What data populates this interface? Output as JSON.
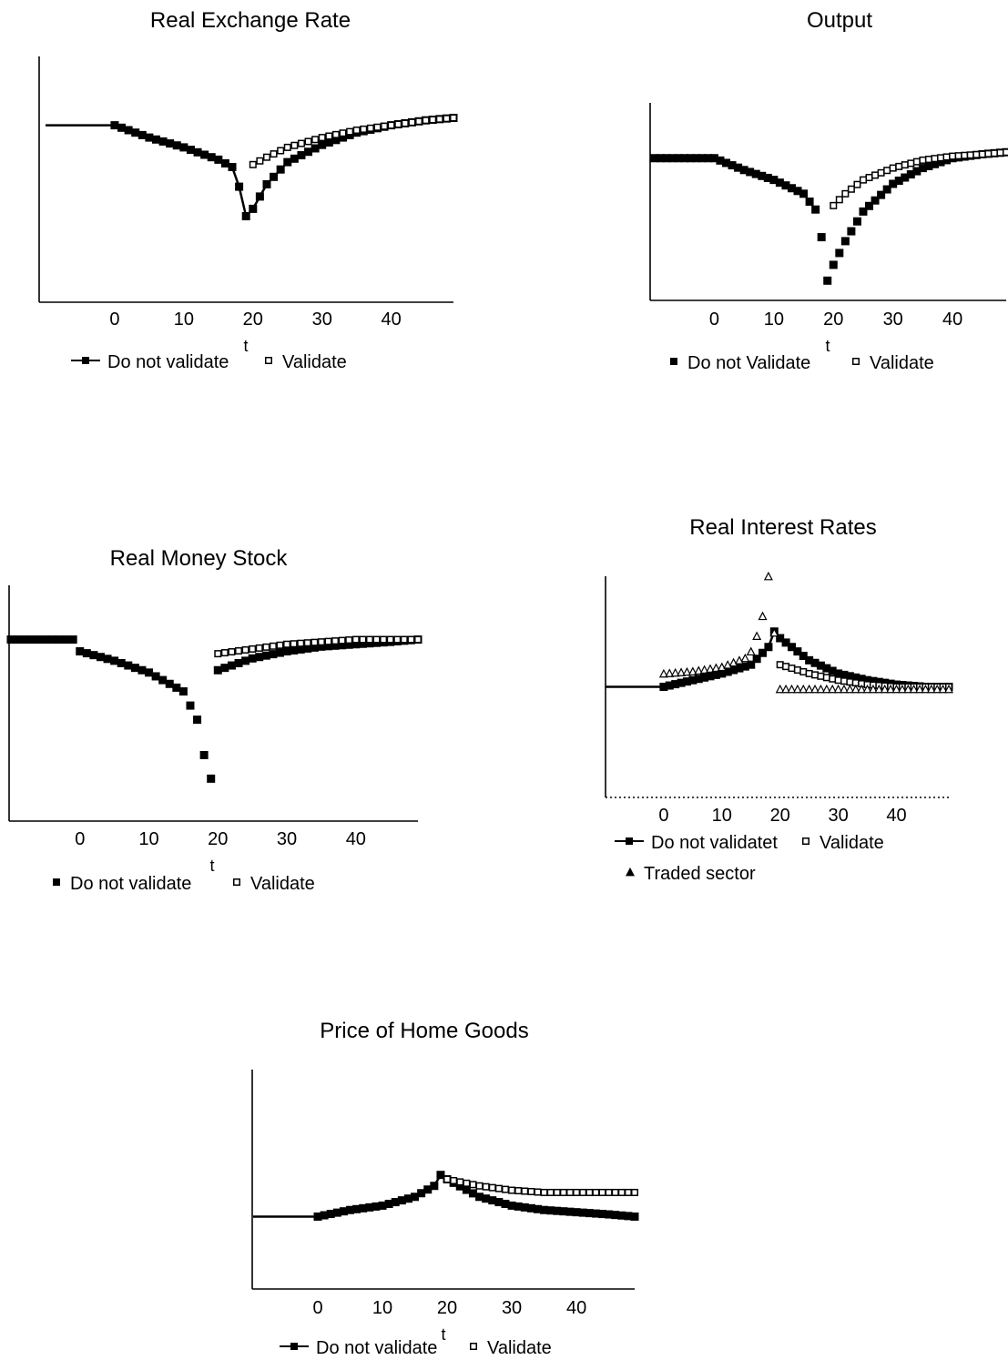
{
  "chart_data": [
    {
      "type": "scatter",
      "title": "Real Exchange Rate",
      "xlabel": "t",
      "ylabel": "",
      "xticks": [
        "0",
        "10",
        "20",
        "30",
        "40"
      ],
      "xlim": [
        -10,
        49
      ],
      "ylim": [
        0,
        100
      ],
      "legend_position": "bottom",
      "series": [
        {
          "name": "Do not validate",
          "marker": "filled-square",
          "connected": true,
          "x": [
            -10,
            0,
            5,
            10,
            15,
            17,
            18,
            19,
            20,
            22,
            25,
            30,
            35,
            40,
            45,
            49
          ],
          "y": [
            72,
            72,
            67,
            63,
            58,
            55,
            47,
            35,
            38,
            48,
            57,
            64,
            69,
            72,
            74,
            75
          ]
        },
        {
          "name": "Validate",
          "marker": "open-square",
          "connected": false,
          "x": [
            20,
            22,
            25,
            30,
            35,
            40,
            45,
            49
          ],
          "y": [
            56,
            59,
            63,
            67,
            70,
            72,
            74,
            75
          ]
        }
      ]
    },
    {
      "type": "scatter",
      "title": "Output",
      "xlabel": "t",
      "ylabel": "",
      "xticks": [
        "0",
        "10",
        "20",
        "30",
        "40"
      ],
      "xlim": [
        -10,
        49
      ],
      "ylim": [
        0,
        100
      ],
      "legend_position": "bottom",
      "series": [
        {
          "name": "Do not Validate",
          "marker": "filled-square",
          "connected": false,
          "x": [
            -10,
            0,
            5,
            10,
            15,
            17,
            18,
            19,
            20,
            22,
            25,
            30,
            35,
            40,
            45,
            49
          ],
          "y": [
            72,
            72,
            66,
            61,
            54,
            46,
            32,
            10,
            18,
            30,
            45,
            59,
            67,
            72,
            74,
            75
          ]
        },
        {
          "name": "Validate",
          "marker": "open-square",
          "connected": false,
          "x": [
            20,
            22,
            25,
            30,
            35,
            40,
            45,
            49
          ],
          "y": [
            48,
            54,
            61,
            67,
            71,
            73,
            74,
            75
          ]
        }
      ]
    },
    {
      "type": "scatter",
      "title": "Real Money Stock",
      "xlabel": "t",
      "ylabel": "",
      "xticks": [
        "0",
        "10",
        "20",
        "30",
        "40"
      ],
      "xlim": [
        -10,
        49
      ],
      "ylim": [
        0,
        100
      ],
      "legend_position": "bottom",
      "series": [
        {
          "name": "Do not validate",
          "marker": "filled-square",
          "connected": false,
          "x": [
            -10,
            -1,
            0,
            5,
            10,
            15,
            17,
            18,
            19,
            20,
            25,
            30,
            35,
            40,
            45,
            49
          ],
          "y": [
            77,
            77,
            72,
            68,
            63,
            55,
            43,
            28,
            18,
            64,
            69,
            72,
            74,
            75,
            76,
            77
          ]
        },
        {
          "name": "Validate",
          "marker": "open-square",
          "connected": false,
          "x": [
            20,
            25,
            30,
            35,
            40,
            45,
            49
          ],
          "y": [
            71,
            73,
            75,
            76,
            77,
            77,
            77
          ]
        }
      ]
    },
    {
      "type": "scatter",
      "title": "Real Interest Rates",
      "xlabel": "",
      "ylabel": "",
      "xticks": [
        "0",
        "10",
        "20",
        "30",
        "40"
      ],
      "xlim": [
        -10,
        49
      ],
      "ylim": [
        0,
        100
      ],
      "legend_position": "bottom",
      "series": [
        {
          "name": "Do not validatet",
          "marker": "filled-square",
          "connected": true,
          "x": [
            -10,
            0,
            5,
            10,
            15,
            18,
            19,
            20,
            25,
            30,
            35,
            40,
            45,
            49
          ],
          "y": [
            50,
            50,
            53,
            56,
            60,
            68,
            75,
            72,
            62,
            56,
            53,
            51,
            50,
            50
          ]
        },
        {
          "name": "Validate",
          "marker": "open-square",
          "connected": false,
          "x": [
            20,
            25,
            30,
            35,
            40,
            45,
            49
          ],
          "y": [
            60,
            56,
            53,
            51,
            50,
            50,
            50
          ]
        },
        {
          "name": "Traded sector",
          "marker": "open-triangle",
          "connected": false,
          "x": [
            0,
            5,
            10,
            14,
            15,
            16,
            17,
            18,
            20,
            25,
            30,
            35,
            40,
            45,
            49
          ],
          "y": [
            56,
            57,
            59,
            63,
            66,
            73,
            82,
            100,
            49,
            49,
            49,
            49,
            49,
            49,
            49
          ]
        }
      ]
    },
    {
      "type": "scatter",
      "title": "Price of Home Goods",
      "xlabel": "t",
      "ylabel": "",
      "xticks": [
        "0",
        "10",
        "20",
        "30",
        "40"
      ],
      "xlim": [
        -10,
        49
      ],
      "ylim": [
        0,
        100
      ],
      "legend_position": "bottom",
      "series": [
        {
          "name": "Do not validate",
          "marker": "filled-square",
          "connected": true,
          "x": [
            -10,
            0,
            5,
            10,
            15,
            18,
            19,
            20,
            25,
            30,
            35,
            40,
            45,
            49
          ],
          "y": [
            33,
            33,
            36,
            38,
            42,
            47,
            52,
            50,
            42,
            38,
            36,
            35,
            34,
            33
          ]
        },
        {
          "name": "Validate",
          "marker": "open-square",
          "connected": false,
          "x": [
            20,
            25,
            30,
            35,
            40,
            45,
            49
          ],
          "y": [
            50,
            47,
            45,
            44,
            44,
            44,
            44
          ]
        }
      ]
    }
  ]
}
